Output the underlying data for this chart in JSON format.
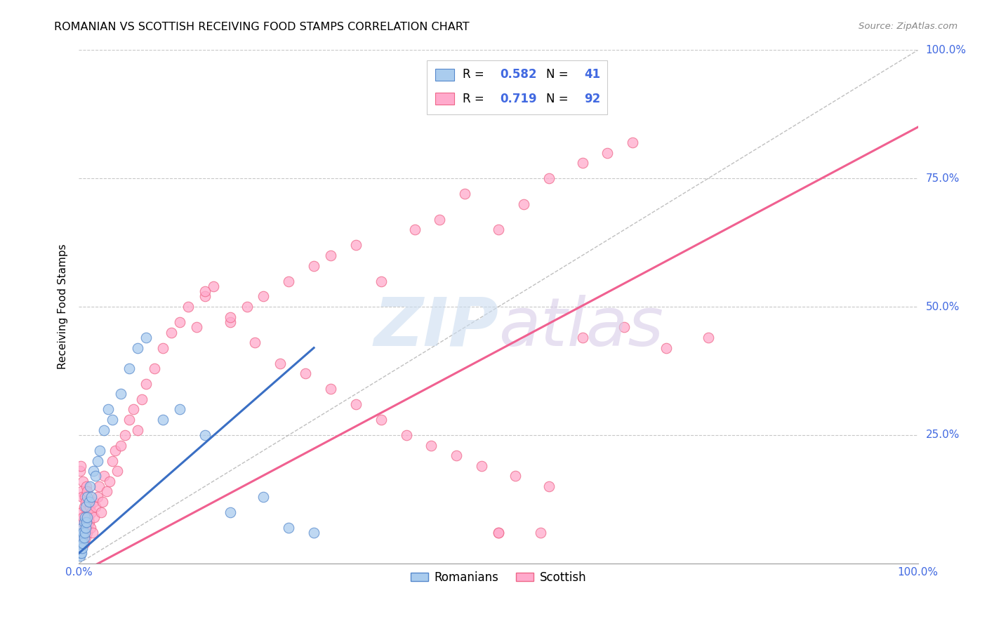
{
  "title": "ROMANIAN VS SCOTTISH RECEIVING FOOD STAMPS CORRELATION CHART",
  "source": "Source: ZipAtlas.com",
  "ylabel": "Receiving Food Stamps",
  "xlim": [
    0,
    1
  ],
  "ylim": [
    0,
    1
  ],
  "romanian_r": 0.582,
  "romanian_n": 41,
  "scottish_r": 0.719,
  "scottish_n": 92,
  "background_color": "#ffffff",
  "grid_color": "#c8c8c8",
  "legend_color": "#4169e1",
  "diagonal_color": "#b0b0b0",
  "romanian_line_color": "#3a6fc4",
  "scottish_line_color": "#f06090",
  "romanian_scatter_fill": "#aaccee",
  "romanian_scatter_edge": "#5588cc",
  "scottish_scatter_fill": "#ffaacc",
  "scottish_scatter_edge": "#ee6688",
  "romanian_points_x": [
    0.001,
    0.002,
    0.002,
    0.003,
    0.003,
    0.003,
    0.004,
    0.004,
    0.004,
    0.005,
    0.005,
    0.006,
    0.006,
    0.007,
    0.007,
    0.008,
    0.008,
    0.009,
    0.01,
    0.01,
    0.012,
    0.013,
    0.015,
    0.017,
    0.02,
    0.022,
    0.025,
    0.03,
    0.035,
    0.04,
    0.05,
    0.06,
    0.07,
    0.08,
    0.1,
    0.12,
    0.15,
    0.18,
    0.22,
    0.25,
    0.28
  ],
  "romanian_points_y": [
    0.015,
    0.02,
    0.03,
    0.02,
    0.04,
    0.06,
    0.03,
    0.05,
    0.07,
    0.04,
    0.06,
    0.05,
    0.08,
    0.06,
    0.09,
    0.07,
    0.11,
    0.08,
    0.09,
    0.13,
    0.12,
    0.15,
    0.13,
    0.18,
    0.17,
    0.2,
    0.22,
    0.26,
    0.3,
    0.28,
    0.33,
    0.38,
    0.42,
    0.44,
    0.28,
    0.3,
    0.25,
    0.1,
    0.13,
    0.07,
    0.06
  ],
  "scottish_points_x": [
    0.001,
    0.002,
    0.002,
    0.003,
    0.003,
    0.004,
    0.004,
    0.005,
    0.005,
    0.005,
    0.006,
    0.006,
    0.007,
    0.007,
    0.008,
    0.008,
    0.009,
    0.009,
    0.01,
    0.01,
    0.011,
    0.012,
    0.013,
    0.014,
    0.015,
    0.016,
    0.017,
    0.018,
    0.02,
    0.022,
    0.024,
    0.026,
    0.028,
    0.03,
    0.033,
    0.036,
    0.04,
    0.043,
    0.046,
    0.05,
    0.055,
    0.06,
    0.065,
    0.07,
    0.075,
    0.08,
    0.09,
    0.1,
    0.11,
    0.12,
    0.13,
    0.14,
    0.15,
    0.16,
    0.18,
    0.2,
    0.22,
    0.25,
    0.28,
    0.3,
    0.33,
    0.36,
    0.4,
    0.43,
    0.46,
    0.5,
    0.53,
    0.56,
    0.6,
    0.63,
    0.66,
    0.5,
    0.55,
    0.15,
    0.18,
    0.21,
    0.24,
    0.27,
    0.3,
    0.33,
    0.36,
    0.39,
    0.42,
    0.45,
    0.48,
    0.52,
    0.56,
    0.6,
    0.65,
    0.7,
    0.75,
    0.5
  ],
  "scottish_points_y": [
    0.18,
    0.19,
    0.06,
    0.1,
    0.14,
    0.08,
    0.13,
    0.05,
    0.09,
    0.16,
    0.04,
    0.11,
    0.06,
    0.13,
    0.05,
    0.12,
    0.07,
    0.15,
    0.06,
    0.14,
    0.09,
    0.08,
    0.11,
    0.07,
    0.1,
    0.06,
    0.12,
    0.09,
    0.11,
    0.13,
    0.15,
    0.1,
    0.12,
    0.17,
    0.14,
    0.16,
    0.2,
    0.22,
    0.18,
    0.23,
    0.25,
    0.28,
    0.3,
    0.26,
    0.32,
    0.35,
    0.38,
    0.42,
    0.45,
    0.47,
    0.5,
    0.46,
    0.52,
    0.54,
    0.47,
    0.5,
    0.52,
    0.55,
    0.58,
    0.6,
    0.62,
    0.55,
    0.65,
    0.67,
    0.72,
    0.65,
    0.7,
    0.75,
    0.78,
    0.8,
    0.82,
    0.06,
    0.06,
    0.53,
    0.48,
    0.43,
    0.39,
    0.37,
    0.34,
    0.31,
    0.28,
    0.25,
    0.23,
    0.21,
    0.19,
    0.17,
    0.15,
    0.44,
    0.46,
    0.42,
    0.44,
    0.06
  ]
}
